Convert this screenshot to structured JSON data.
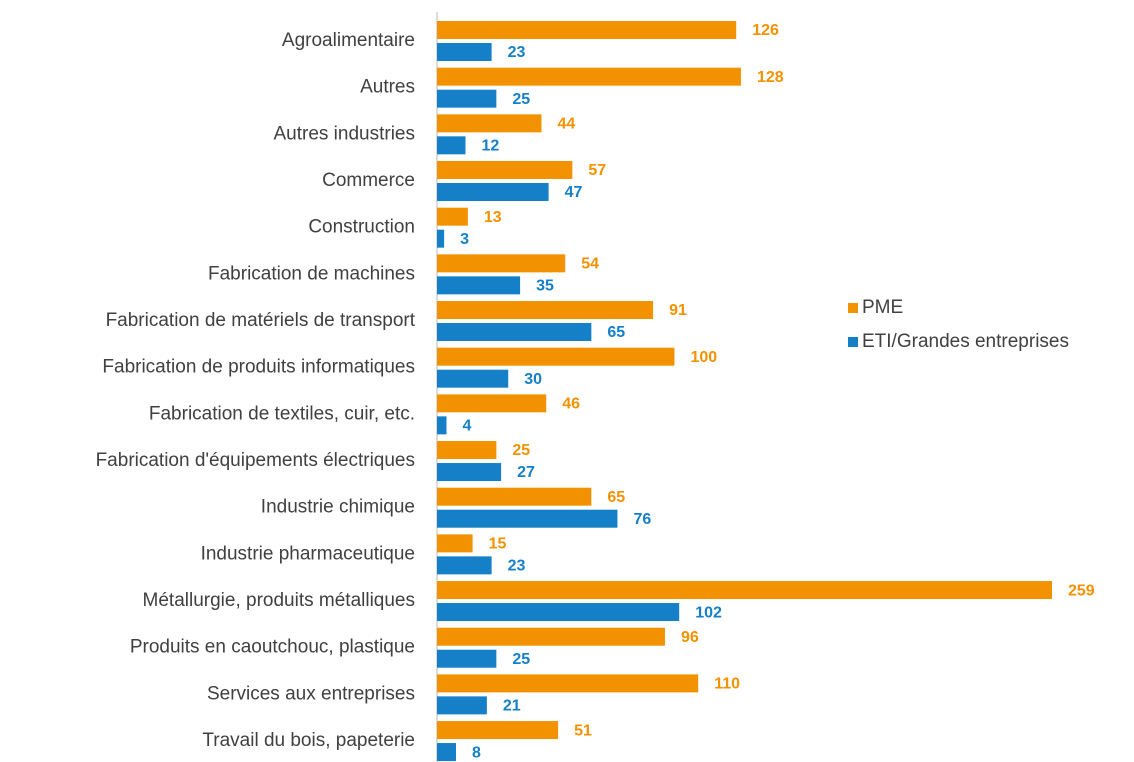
{
  "chart_data": {
    "type": "bar",
    "orientation": "horizontal",
    "categories": [
      "Agroalimentaire",
      "Autres",
      "Autres industries",
      "Commerce",
      "Construction",
      "Fabrication de machines",
      "Fabrication de matériels de transport",
      "Fabrication de produits informatiques",
      "Fabrication de textiles, cuir, etc.",
      "Fabrication d'équipements électriques",
      "Industrie chimique",
      "Industrie pharmaceutique",
      "Métallurgie, produits métalliques",
      "Produits en caoutchouc, plastique",
      "Services aux entreprises",
      "Travail du bois, papeterie"
    ],
    "series": [
      {
        "name": "PME",
        "color": "#f39200",
        "values": [
          126,
          128,
          44,
          57,
          13,
          54,
          91,
          100,
          46,
          25,
          65,
          15,
          259,
          96,
          110,
          51
        ]
      },
      {
        "name": "ETI/Grandes entreprises",
        "color": "#1580c8",
        "values": [
          23,
          25,
          12,
          47,
          3,
          35,
          65,
          30,
          4,
          27,
          76,
          23,
          102,
          25,
          21,
          8
        ]
      }
    ],
    "legend": "right"
  }
}
